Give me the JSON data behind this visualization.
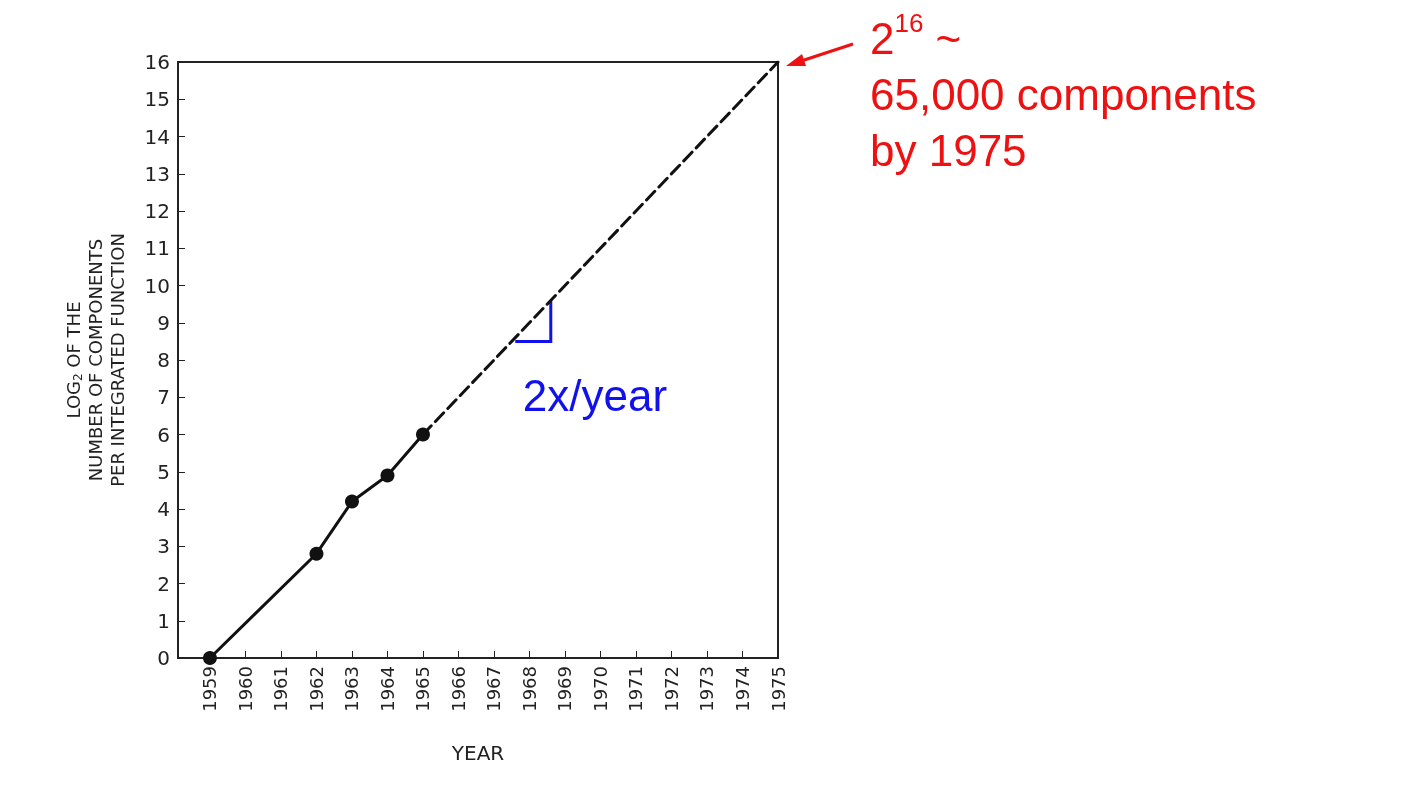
{
  "chart_data": {
    "type": "line",
    "xlabel": "YEAR",
    "ylabel": "LOG$_{2}$ OF THE\nNUMBER OF COMPONENTS\nPER INTEGRATED FUNCTION",
    "series": [
      {
        "color": "#111111",
        "x": [
          1959,
          1962,
          1963,
          1964,
          1965
        ],
        "values": [
          0,
          2.8,
          4.2,
          4.9,
          6.0
        ],
        "marker": "circle",
        "line_style": "solid"
      },
      {
        "color": "#111111",
        "x": [
          1965,
          1975
        ],
        "values": [
          6.0,
          16
        ],
        "marker": "none",
        "line_style": "dashed"
      }
    ],
    "xlim": [
      1958.1,
      1975
    ],
    "xticks": [
      1959,
      1960,
      1961,
      1962,
      1963,
      1964,
      1965,
      1966,
      1967,
      1968,
      1969,
      1970,
      1971,
      1972,
      1973,
      1974,
      1975
    ],
    "ylim": [
      0,
      16
    ],
    "yticks": [
      0,
      1,
      2,
      3,
      4,
      5,
      6,
      7,
      8,
      9,
      10,
      11,
      12,
      13,
      14,
      15,
      16
    ],
    "grid": false,
    "annotations": [
      {
        "text": "2$^{16}$ ~\n65,000 components\nby 1975",
        "x": 1975,
        "y": 16
      },
      {
        "text": "2x/year",
        "x": 1968.6,
        "y": 9.6
      }
    ]
  }
}
